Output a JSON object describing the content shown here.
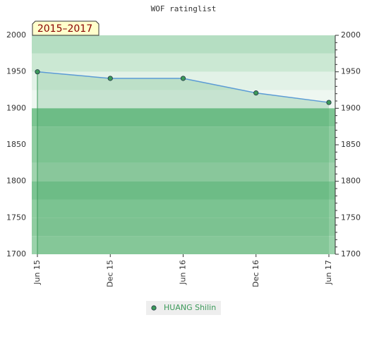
{
  "chart_data": {
    "type": "line",
    "title": "WOF ratinglist",
    "annotation": "2015–2017",
    "categories": [
      "Jun 15",
      "Dec 15",
      "Jun 16",
      "Dec 16",
      "Jun 17"
    ],
    "series": [
      {
        "name": "HUANG Shilin",
        "color": "#5b9bd5",
        "marker_color": "#3c9a5a",
        "values": [
          1950,
          1941,
          1941,
          1921,
          1908
        ]
      }
    ],
    "ylim": [
      1700,
      2000
    ],
    "yticks": [
      1700,
      1750,
      1800,
      1850,
      1900,
      1950,
      2000
    ],
    "y2lim": [
      1700,
      2000
    ],
    "y2ticks": [
      1700,
      1750,
      1800,
      1850,
      1900,
      1950,
      2000
    ],
    "legend": "bottom",
    "area": true
  }
}
